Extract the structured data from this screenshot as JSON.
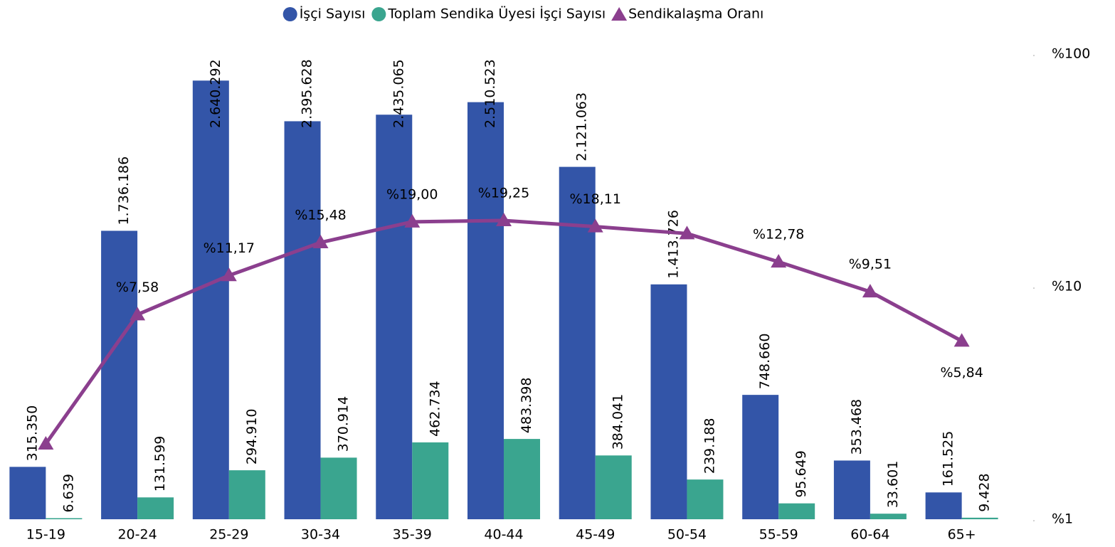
{
  "chart_data": {
    "type": "bar",
    "categories": [
      "15-19",
      "20-24",
      "25-29",
      "30-34",
      "35-39",
      "40-44",
      "45-49",
      "50-54",
      "55-59",
      "60-64",
      "65+"
    ],
    "series": [
      {
        "name": "İşçi Sayısı",
        "type": "bar",
        "color": "#3355a8",
        "values": [
          315350,
          1736186,
          2640292,
          2395628,
          2435065,
          2510523,
          2121063,
          1413726,
          748660,
          353468,
          161525
        ],
        "value_labels": [
          "315.350",
          "1.736.186",
          "2.640.292",
          "2.395.628",
          "2.435.065",
          "2.510.523",
          "2.121.063",
          "1.413.726",
          "748.660",
          "353.468",
          "161.525"
        ]
      },
      {
        "name": "Toplam Sendika Üyesi İşçi Sayısı",
        "type": "bar",
        "color": "#3aa58f",
        "values": [
          6639,
          131599,
          294910,
          370914,
          462734,
          483398,
          384041,
          239188,
          95649,
          33601,
          9428
        ],
        "value_labels": [
          "6.639",
          "131.599",
          "294.910",
          "370.914",
          "462.734",
          "483.398",
          "384.041",
          "239.188",
          "95.649",
          "33.601",
          "9.428"
        ]
      },
      {
        "name": "Sendikalaşma Oranı",
        "type": "line",
        "axis": "y2",
        "color": "#8b3f8e",
        "values": [
          2.11,
          7.58,
          11.17,
          15.48,
          19.0,
          19.25,
          18.11,
          16.92,
          12.78,
          9.51,
          5.84
        ],
        "value_labels": [
          null,
          "%7,58",
          "%11,17",
          "%15,48",
          "%19,00",
          "%19,25",
          "%18,11",
          null,
          "%12,78",
          "%9,51",
          "%5,84"
        ]
      }
    ],
    "ylim": [
      0,
      2800000
    ],
    "y2lim": [
      1,
      100
    ],
    "y2log": true,
    "y2ticks": [
      {
        "value": 1,
        "label": "%1"
      },
      {
        "value": 10,
        "label": "%10"
      },
      {
        "value": 100,
        "label": "%100"
      }
    ],
    "legend": "top"
  }
}
